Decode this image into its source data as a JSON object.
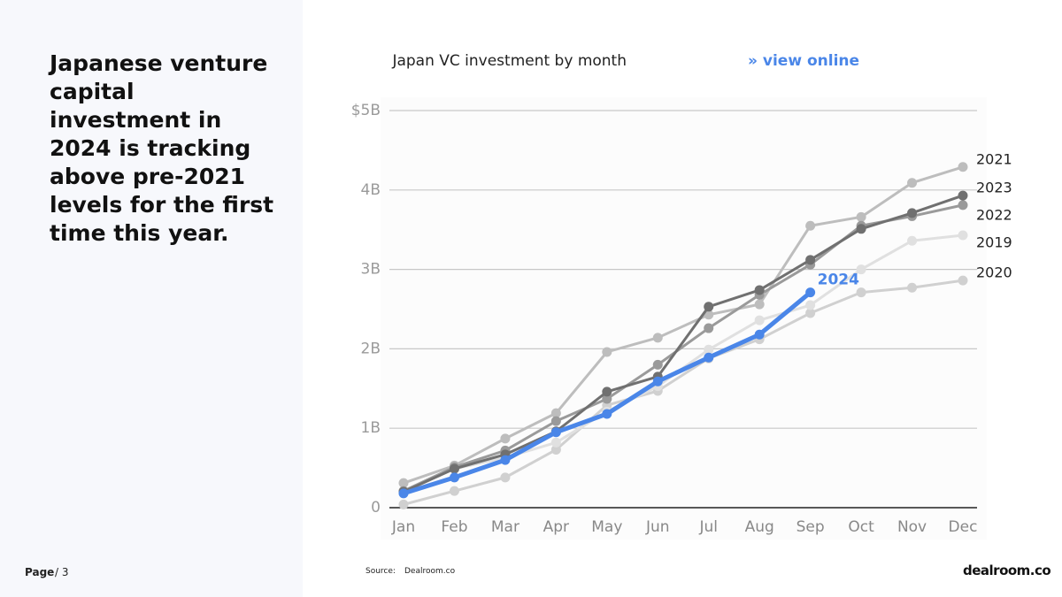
{
  "headline": "Japanese venture capital investment in 2024 is tracking above pre-2021 levels for the first time this year.",
  "footer": {
    "page_label": "Page",
    "page_number": "/ 3",
    "source_label": "Source:",
    "source": "Dealroom.co",
    "logo": "dealroom.co"
  },
  "chart_data": {
    "type": "line",
    "title": "Japan VC investment by month",
    "link": "» view online",
    "categories": [
      "Jan",
      "Feb",
      "Mar",
      "Apr",
      "May",
      "Jun",
      "Jul",
      "Aug",
      "Sep",
      "Oct",
      "Nov",
      "Dec"
    ],
    "ylim": [
      0,
      5
    ],
    "yticks": [
      {
        "value": 0,
        "label": "0"
      },
      {
        "value": 1,
        "label": "1B"
      },
      {
        "value": 2,
        "label": "2B"
      },
      {
        "value": 3,
        "label": "3B"
      },
      {
        "value": 4,
        "label": "4B"
      },
      {
        "value": 5,
        "label": "$5B"
      }
    ],
    "grid": true,
    "series": [
      {
        "name": "2020",
        "color": "#d0d0d0",
        "values": [
          0.04,
          0.21,
          0.38,
          0.73,
          1.29,
          1.47,
          1.88,
          2.12,
          2.45,
          2.71,
          2.77,
          2.86
        ]
      },
      {
        "name": "2019",
        "color": "#e0e0e0",
        "values": [
          0.2,
          0.49,
          0.63,
          0.82,
          1.21,
          1.53,
          1.99,
          2.36,
          2.55,
          3.0,
          3.36,
          3.43
        ]
      },
      {
        "name": "2021",
        "color": "#bdbdbd",
        "values": [
          0.31,
          0.53,
          0.87,
          1.19,
          1.96,
          2.14,
          2.43,
          2.56,
          3.55,
          3.66,
          4.09,
          4.29
        ]
      },
      {
        "name": "2022",
        "color": "#9a9a9a",
        "values": [
          0.21,
          0.51,
          0.72,
          1.09,
          1.37,
          1.8,
          2.26,
          2.68,
          3.06,
          3.55,
          3.67,
          3.81
        ]
      },
      {
        "name": "2023",
        "color": "#707070",
        "values": [
          0.2,
          0.49,
          0.67,
          0.96,
          1.46,
          1.65,
          2.53,
          2.74,
          3.12,
          3.51,
          3.71,
          3.93
        ]
      },
      {
        "name": "2024",
        "color": "#4a86e8",
        "values": [
          0.18,
          0.38,
          0.6,
          0.95,
          1.18,
          1.59,
          1.89,
          2.18,
          2.71,
          null,
          null,
          null
        ]
      }
    ]
  }
}
